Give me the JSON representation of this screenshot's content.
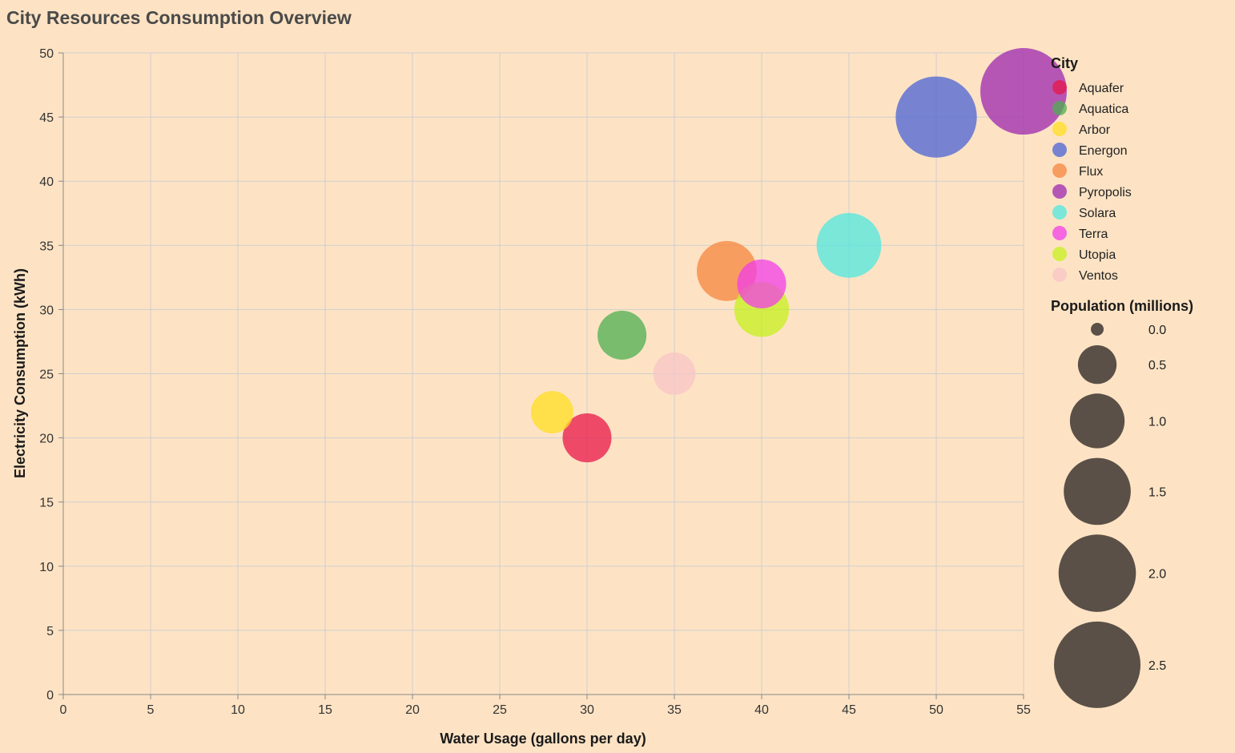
{
  "chart_data": {
    "type": "scatter",
    "title": "City Resources Consumption Overview",
    "xlabel": "Water Usage (gallons per day)",
    "ylabel": "Electricity Consumption (kWh)",
    "xlim": [
      0,
      55
    ],
    "ylim": [
      0,
      50
    ],
    "xticks": [
      0,
      5,
      10,
      15,
      20,
      25,
      30,
      35,
      40,
      45,
      50,
      55
    ],
    "yticks": [
      0,
      5,
      10,
      15,
      20,
      25,
      30,
      35,
      40,
      45,
      50
    ],
    "grid": true,
    "legend_position": "right",
    "color_legend_title": "City",
    "size_legend_title": "Population (millions)",
    "size_legend_values": [
      0.0,
      0.5,
      1.0,
      1.5,
      2.0,
      2.5
    ],
    "size_legend_labels": [
      "0.0",
      "0.5",
      "1.0",
      "1.5",
      "2.0",
      "2.5"
    ],
    "size_legend_color": "#5b5047",
    "points": [
      {
        "city": "Pyropolis",
        "x": 55,
        "y": 47,
        "population": 2.5,
        "color": "#9c27b0"
      },
      {
        "city": "Energon",
        "x": 50,
        "y": 45,
        "population": 2.2,
        "color": "#4a63d6"
      },
      {
        "city": "Solara",
        "x": 45,
        "y": 35,
        "population": 1.4,
        "color": "#4de8e0"
      },
      {
        "city": "Flux",
        "x": 38,
        "y": 33,
        "population": 1.2,
        "color": "#f5853f"
      },
      {
        "city": "Utopia",
        "x": 40,
        "y": 30,
        "population": 1.0,
        "color": "#c6f01e"
      },
      {
        "city": "Terra",
        "x": 40,
        "y": 32,
        "population": 0.8,
        "color": "#f13ee8"
      },
      {
        "city": "Aquatica",
        "x": 32,
        "y": 28,
        "population": 0.8,
        "color": "#4caf50"
      },
      {
        "city": "Aquafer",
        "x": 30,
        "y": 20,
        "population": 0.8,
        "color": "#e8174a"
      },
      {
        "city": "Arbor",
        "x": 28,
        "y": 22,
        "population": 0.6,
        "color": "#ffde21"
      },
      {
        "city": "Ventos",
        "x": 35,
        "y": 25,
        "population": 0.6,
        "color": "#f7c6c7"
      }
    ],
    "legend_order": [
      "Aquafer",
      "Aquatica",
      "Arbor",
      "Energon",
      "Flux",
      "Pyropolis",
      "Solara",
      "Terra",
      "Utopia",
      "Ventos"
    ]
  }
}
